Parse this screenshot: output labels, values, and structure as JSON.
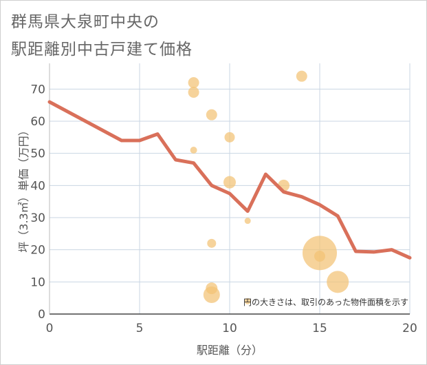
{
  "chart_data": {
    "type": "scatter+line",
    "title_line1": "群馬県大泉町中央の",
    "title_line2": "駅距離別中古戸建て価格",
    "xlabel": "駅距離（分）",
    "ylabel": "坪（3.3㎡）単価（万円）",
    "note": "円の大きさは、取引のあった物件面積を示す",
    "xlim": [
      0,
      20
    ],
    "ylim": [
      0,
      78
    ],
    "xticks": [
      0,
      5,
      10,
      15,
      20
    ],
    "yticks": [
      0,
      10,
      20,
      30,
      40,
      50,
      60,
      70
    ],
    "colors": {
      "line": "#d9705a",
      "bubble": "#f3c274",
      "grid": "#c9d6e3",
      "text": "#555555"
    },
    "line": {
      "x": [
        0,
        1,
        2,
        3,
        4,
        5,
        6,
        7,
        8,
        9,
        10,
        11,
        12,
        13,
        14,
        15,
        16,
        17,
        18,
        19,
        20
      ],
      "y": [
        66,
        63,
        60,
        57,
        54,
        54,
        56,
        48,
        47,
        40,
        37.5,
        32,
        43.5,
        38,
        36.5,
        34,
        30.5,
        19.5,
        19.3,
        20,
        17.5
      ]
    },
    "bubbles": [
      {
        "x": 8,
        "y": 72,
        "size": 8
      },
      {
        "x": 8,
        "y": 69,
        "size": 8
      },
      {
        "x": 8,
        "y": 51,
        "size": 5
      },
      {
        "x": 9,
        "y": 62,
        "size": 8
      },
      {
        "x": 9,
        "y": 22,
        "size": 6.5
      },
      {
        "x": 9,
        "y": 8,
        "size": 8.5
      },
      {
        "x": 9,
        "y": 6,
        "size": 12
      },
      {
        "x": 10,
        "y": 55,
        "size": 7.5
      },
      {
        "x": 10,
        "y": 41,
        "size": 9
      },
      {
        "x": 11,
        "y": 29,
        "size": 4.5
      },
      {
        "x": 11,
        "y": 4,
        "size": 4.5
      },
      {
        "x": 13,
        "y": 40,
        "size": 8.5
      },
      {
        "x": 14,
        "y": 74,
        "size": 8
      },
      {
        "x": 15,
        "y": 19,
        "size": 25
      },
      {
        "x": 15,
        "y": 18,
        "size": 8
      },
      {
        "x": 16,
        "y": 10,
        "size": 16
      }
    ]
  }
}
